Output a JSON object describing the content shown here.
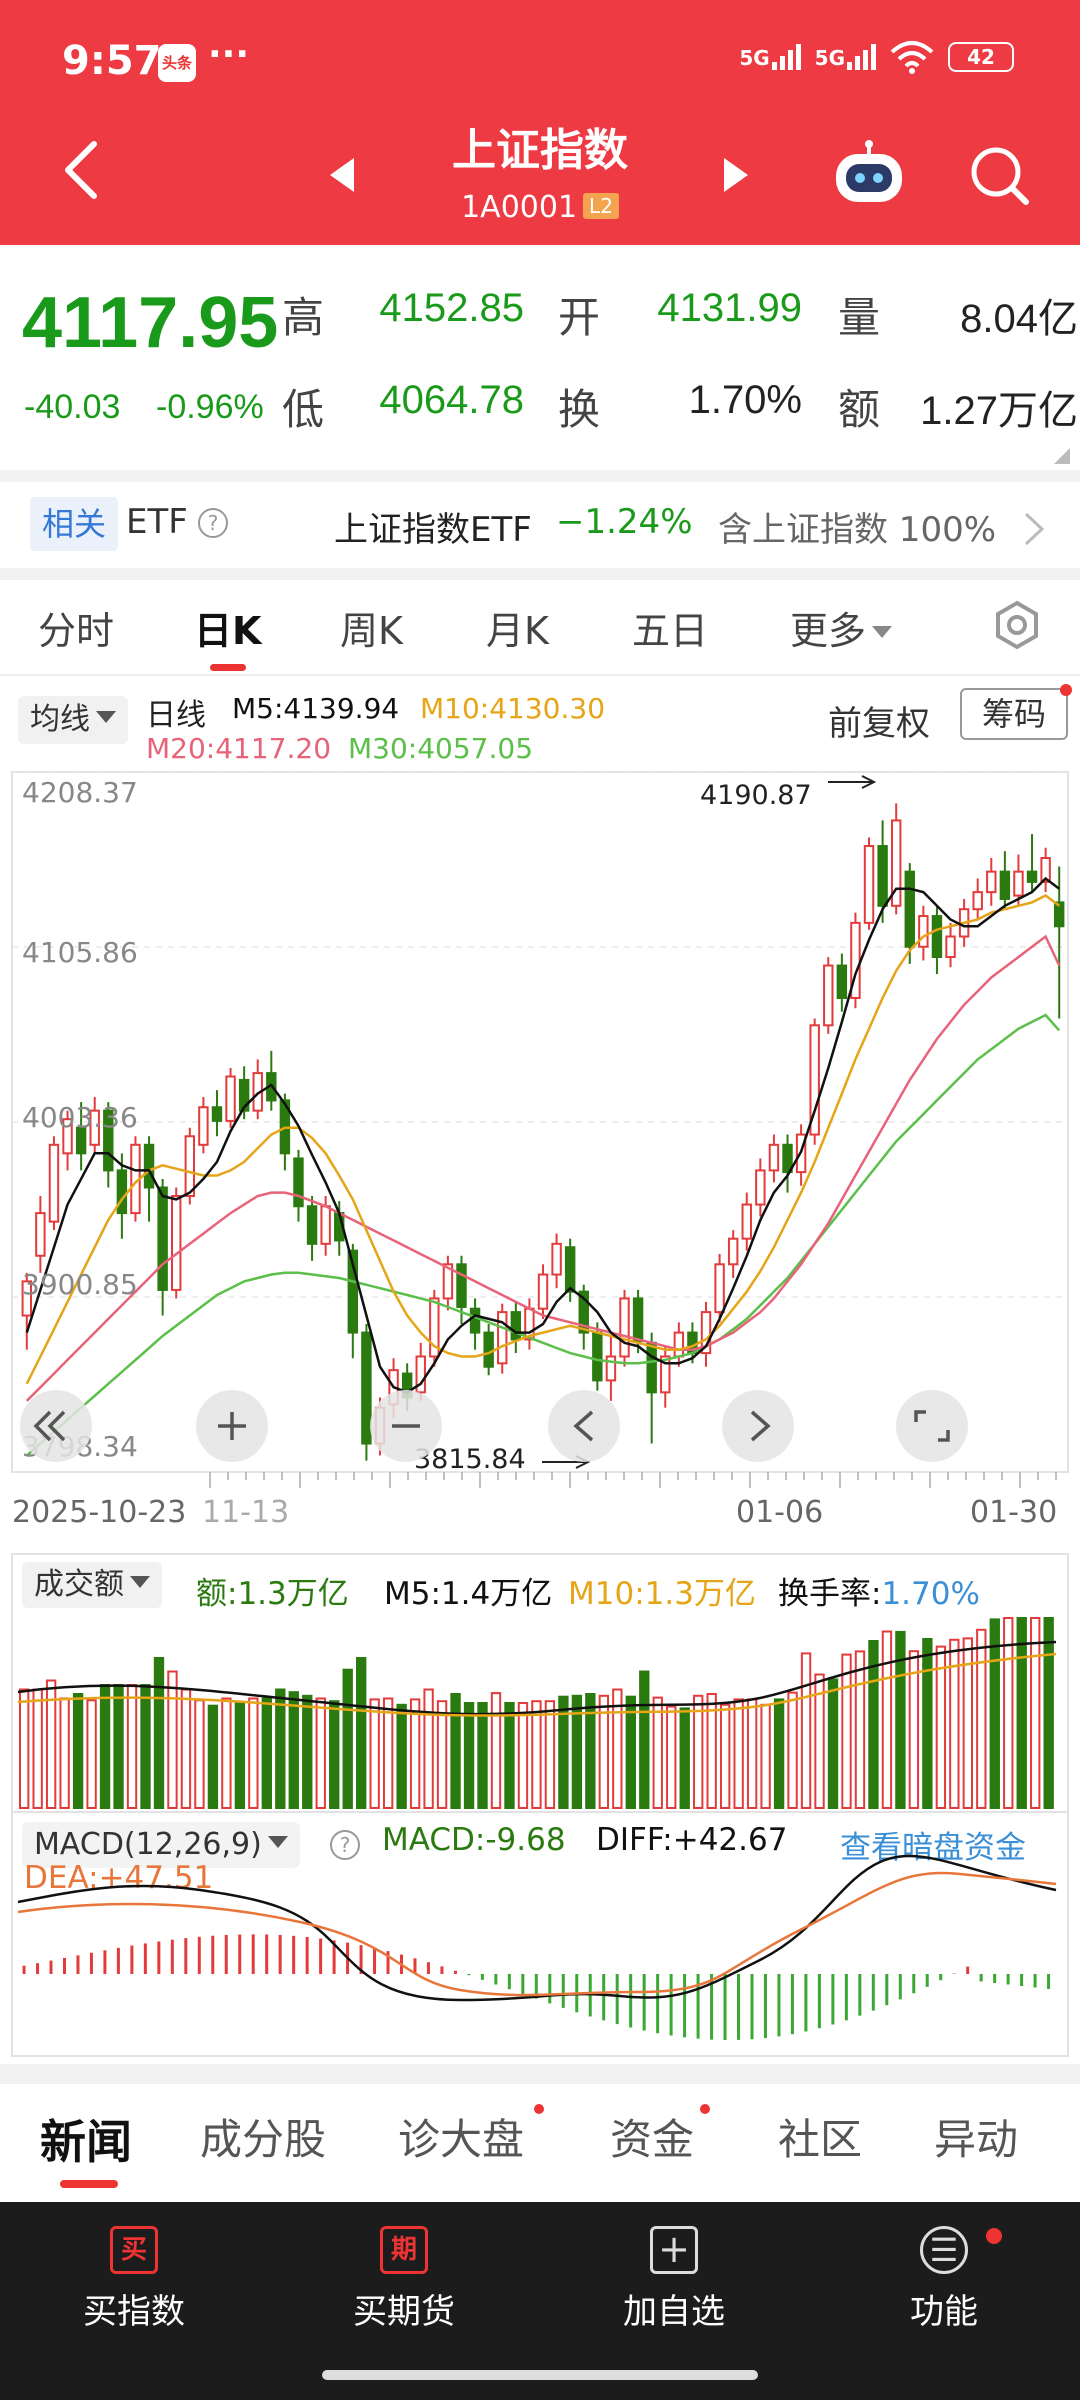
{
  "status": {
    "time": "9:57",
    "app_badge": "头条",
    "dots": "···",
    "net1": "5G",
    "net2": "5G",
    "battery": "42"
  },
  "header": {
    "title": "上证指数",
    "code": "1A0001",
    "badge": "L2"
  },
  "quote": {
    "price": "4117.95",
    "change": "-40.03",
    "change_pct": "-0.96%",
    "high_label": "高",
    "high": "4152.85",
    "open_label": "开",
    "open": "4131.99",
    "vol_label": "量",
    "vol": "8.04亿",
    "low_label": "低",
    "low": "4064.78",
    "turnover_label": "换",
    "turnover": "1.70%",
    "amount_label": "额",
    "amount": "1.27万亿"
  },
  "etf": {
    "badge": "相关",
    "label": "ETF",
    "name": "上证指数ETF",
    "change": "−1.24%",
    "holding": "含上证指数 100%"
  },
  "tabs": [
    "分时",
    "日K",
    "周K",
    "月K",
    "五日",
    "更多"
  ],
  "ma": {
    "selector": "均线",
    "kind": "日线",
    "m5": "M5:4139.94",
    "m10": "M10:4130.30",
    "m20": "M20:4117.20",
    "m30": "M30:4057.05",
    "adjust": "前复权",
    "chips": "筹码"
  },
  "colors": {
    "up": "#e33b3b",
    "down": "#2a7a10",
    "m5": "#111111",
    "m10": "#e6a417",
    "m20": "#e8637a",
    "m30": "#5bbf4a",
    "accent": "#ee3a42",
    "blue": "#3b8fd6"
  },
  "chart_data": {
    "type": "candlestick",
    "y_ticks": [
      "4208.37",
      "4105.86",
      "4003.36",
      "3900.85",
      "3798.34"
    ],
    "x_ticks": [
      "2025-10-23",
      "11-13",
      "01-06",
      "01-30"
    ],
    "high_annotation": "4190.87",
    "low_annotation": "3815.84",
    "ylim": [
      3798.34,
      4208.37
    ],
    "candles": [
      [
        3890,
        3910,
        3870,
        3915
      ],
      [
        3925,
        3950,
        3915,
        3960
      ],
      [
        3945,
        3990,
        3940,
        3995
      ],
      [
        3985,
        4005,
        3975,
        4010
      ],
      [
        4000,
        3985,
        3975,
        4015
      ],
      [
        3990,
        4010,
        3985,
        4018
      ],
      [
        4010,
        3975,
        3965,
        4015
      ],
      [
        3975,
        3950,
        3935,
        3985
      ],
      [
        3950,
        3990,
        3945,
        3995
      ],
      [
        3990,
        3965,
        3945,
        3995
      ],
      [
        3965,
        3905,
        3890,
        3970
      ],
      [
        3905,
        3960,
        3900,
        3965
      ],
      [
        3960,
        3995,
        3955,
        4000
      ],
      [
        3990,
        4012,
        3985,
        4018
      ],
      [
        4012,
        4004,
        3995,
        4022
      ],
      [
        4004,
        4030,
        4000,
        4035
      ],
      [
        4028,
        4010,
        4005,
        4036
      ],
      [
        4010,
        4032,
        4005,
        4040
      ],
      [
        4032,
        4016,
        4010,
        4045
      ],
      [
        4016,
        3985,
        3975,
        4020
      ],
      [
        3982,
        3954,
        3945,
        3987
      ],
      [
        3954,
        3932,
        3922,
        3960
      ],
      [
        3932,
        3954,
        3925,
        3960
      ],
      [
        3950,
        3934,
        3925,
        3957
      ],
      [
        3928,
        3880,
        3865,
        3932
      ],
      [
        3880,
        3815,
        3805,
        3885
      ],
      [
        3815,
        3836,
        3808,
        3842
      ],
      [
        3838,
        3858,
        3830,
        3865
      ],
      [
        3856,
        3842,
        3834,
        3862
      ],
      [
        3845,
        3866,
        3840,
        3874
      ],
      [
        3866,
        3900,
        3860,
        3905
      ],
      [
        3900,
        3920,
        3893,
        3925
      ],
      [
        3920,
        3895,
        3885,
        3925
      ],
      [
        3894,
        3880,
        3870,
        3900
      ],
      [
        3880,
        3860,
        3855,
        3885
      ],
      [
        3862,
        3892,
        3856,
        3897
      ],
      [
        3892,
        3876,
        3868,
        3898
      ],
      [
        3876,
        3894,
        3870,
        3900
      ],
      [
        3894,
        3914,
        3888,
        3920
      ],
      [
        3914,
        3932,
        3906,
        3938
      ],
      [
        3930,
        3904,
        3898,
        3935
      ],
      [
        3904,
        3880,
        3870,
        3908
      ],
      [
        3880,
        3852,
        3846,
        3886
      ],
      [
        3852,
        3866,
        3840,
        3878
      ],
      [
        3866,
        3900,
        3860,
        3905
      ],
      [
        3900,
        3875,
        3868,
        3905
      ],
      [
        3874,
        3845,
        3815,
        3880
      ],
      [
        3845,
        3866,
        3836,
        3872
      ],
      [
        3866,
        3880,
        3860,
        3886
      ],
      [
        3880,
        3868,
        3862,
        3886
      ],
      [
        3868,
        3892,
        3860,
        3898
      ],
      [
        3892,
        3920,
        3886,
        3926
      ],
      [
        3920,
        3935,
        3912,
        3940
      ],
      [
        3935,
        3955,
        3928,
        3962
      ],
      [
        3955,
        3975,
        3948,
        3982
      ],
      [
        3975,
        3990,
        3968,
        3996
      ],
      [
        3990,
        3974,
        3962,
        3996
      ],
      [
        3974,
        3996,
        3966,
        4002
      ],
      [
        3996,
        4060,
        3990,
        4064
      ],
      [
        4060,
        4095,
        4055,
        4100
      ],
      [
        4095,
        4076,
        4068,
        4102
      ],
      [
        4076,
        4120,
        4070,
        4126
      ],
      [
        4120,
        4165,
        4116,
        4170
      ],
      [
        4165,
        4130,
        4120,
        4180
      ],
      [
        4130,
        4180,
        4125,
        4190
      ],
      [
        4150,
        4106,
        4096,
        4155
      ],
      [
        4106,
        4124,
        4098,
        4130
      ],
      [
        4124,
        4100,
        4090,
        4130
      ],
      [
        4100,
        4112,
        4094,
        4120
      ],
      [
        4112,
        4128,
        4106,
        4134
      ],
      [
        4128,
        4138,
        4122,
        4146
      ],
      [
        4138,
        4150,
        4130,
        4158
      ],
      [
        4150,
        4134,
        4128,
        4162
      ],
      [
        4136,
        4150,
        4130,
        4160
      ],
      [
        4150,
        4144,
        4138,
        4172
      ],
      [
        4144,
        4158,
        4138,
        4164
      ],
      [
        4132,
        4118,
        4064,
        4153
      ]
    ],
    "ma5": [
      3880,
      3905,
      3930,
      3955,
      3970,
      3985,
      3985,
      3978,
      3975,
      3975,
      3960,
      3958,
      3962,
      3970,
      3980,
      3998,
      4012,
      4020,
      4025,
      4014,
      4001,
      3984,
      3968,
      3950,
      3920,
      3890,
      3860,
      3848,
      3845,
      3850,
      3862,
      3876,
      3884,
      3890,
      3888,
      3886,
      3880,
      3880,
      3885,
      3898,
      3906,
      3900,
      3892,
      3880,
      3874,
      3872,
      3866,
      3862,
      3862,
      3865,
      3872,
      3888,
      3906,
      3925,
      3946,
      3962,
      3972,
      3986,
      4010,
      4035,
      4062,
      4090,
      4110,
      4128,
      4140,
      4140,
      4138,
      4130,
      4122,
      4118,
      4118,
      4124,
      4130,
      4134,
      4138,
      4146,
      4140
    ],
    "ma10": [
      3850,
      3866,
      3882,
      3898,
      3914,
      3930,
      3946,
      3958,
      3968,
      3975,
      3978,
      3976,
      3974,
      3972,
      3972,
      3975,
      3980,
      3988,
      3996,
      4000,
      4000,
      3994,
      3985,
      3972,
      3958,
      3940,
      3922,
      3904,
      3890,
      3880,
      3872,
      3868,
      3866,
      3866,
      3868,
      3872,
      3875,
      3878,
      3880,
      3882,
      3884,
      3882,
      3880,
      3878,
      3876,
      3874,
      3872,
      3870,
      3870,
      3872,
      3876,
      3884,
      3894,
      3904,
      3916,
      3930,
      3946,
      3962,
      3980,
      4000,
      4020,
      4040,
      4058,
      4076,
      4092,
      4104,
      4112,
      4116,
      4118,
      4120,
      4122,
      4126,
      4128,
      4130,
      4132,
      4136,
      4130
    ],
    "ma20": [
      3840,
      3848,
      3856,
      3864,
      3872,
      3880,
      3888,
      3896,
      3904,
      3912,
      3920,
      3926,
      3932,
      3938,
      3944,
      3950,
      3955,
      3960,
      3962,
      3962,
      3960,
      3957,
      3954,
      3950,
      3946,
      3942,
      3938,
      3934,
      3930,
      3926,
      3922,
      3918,
      3914,
      3910,
      3906,
      3902,
      3898,
      3894,
      3890,
      3888,
      3886,
      3884,
      3882,
      3880,
      3878,
      3876,
      3874,
      3872,
      3870,
      3870,
      3872,
      3876,
      3880,
      3886,
      3892,
      3900,
      3910,
      3920,
      3932,
      3944,
      3958,
      3972,
      3986,
      4000,
      4014,
      4028,
      4040,
      4052,
      4062,
      4072,
      4080,
      4088,
      4094,
      4100,
      4106,
      4112,
      4095
    ],
    "ma30": [
      3808,
      3815,
      3822,
      3829,
      3836,
      3843,
      3850,
      3857,
      3864,
      3871,
      3878,
      3884,
      3890,
      3896,
      3902,
      3906,
      3910,
      3912,
      3914,
      3915,
      3915,
      3914,
      3913,
      3912,
      3910,
      3908,
      3906,
      3904,
      3902,
      3900,
      3898,
      3895,
      3892,
      3889,
      3886,
      3883,
      3880,
      3877,
      3874,
      3871,
      3868,
      3866,
      3864,
      3863,
      3862,
      3862,
      3863,
      3864,
      3866,
      3868,
      3872,
      3876,
      3882,
      3888,
      3896,
      3904,
      3912,
      3922,
      3932,
      3942,
      3952,
      3962,
      3972,
      3982,
      3992,
      4000,
      4008,
      4016,
      4024,
      4032,
      4040,
      4046,
      4052,
      4058,
      4062,
      4066,
      4057
    ]
  },
  "volume": {
    "selector": "成交额",
    "amount": "额:1.3万亿",
    "m5": "M5:1.4万亿",
    "m10": "M10:1.3万亿",
    "turnover_label": "换手率:",
    "turnover": "1.70%"
  },
  "macd": {
    "selector": "MACD(12,26,9)",
    "macd": "MACD:-9.68",
    "diff": "DIFF:+42.67",
    "dea": "DEA:+47.51",
    "link": "查看暗盘资金"
  },
  "chart_controls": [
    "rewind",
    "zoom-in",
    "zoom-out",
    "prev",
    "next",
    "fullscreen"
  ],
  "news_tabs": [
    "新闻",
    "成分股",
    "诊大盘",
    "资金",
    "社区",
    "异动"
  ],
  "nav": [
    {
      "icon": "买",
      "label": "买指数"
    },
    {
      "icon": "期",
      "label": "买期货"
    },
    {
      "icon": "+",
      "label": "加自选"
    },
    {
      "icon": "☰",
      "label": "功能"
    }
  ]
}
